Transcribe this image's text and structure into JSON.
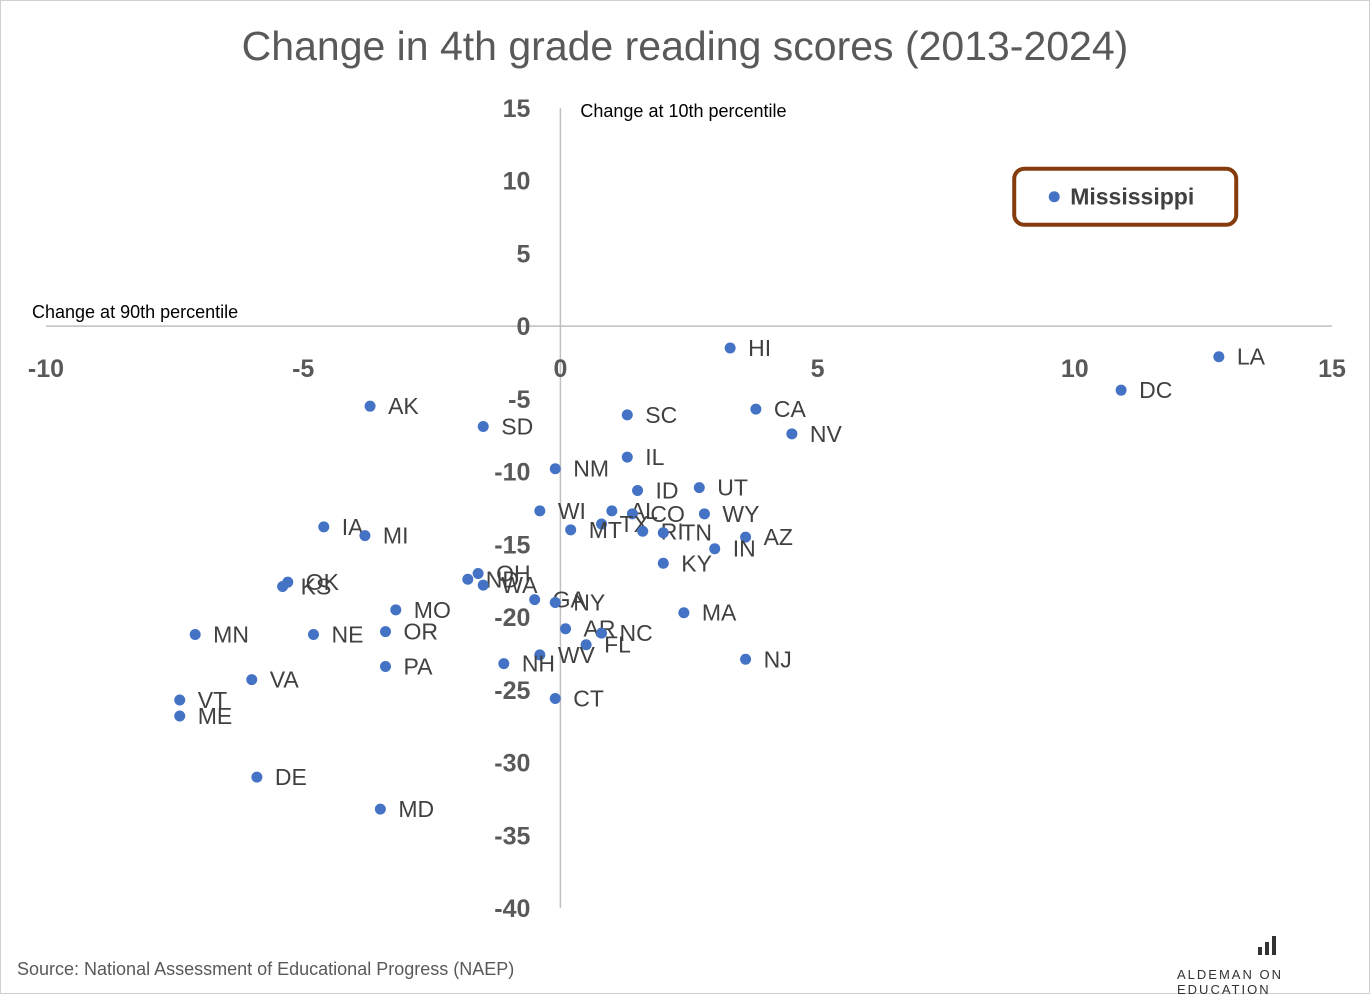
{
  "chart_data": {
    "type": "scatter",
    "title": "Change in 4th grade reading scores (2013-2024)",
    "xlabel": "Change at 90th percentile",
    "ylabel": "Change at 10th percentile",
    "xlim": [
      -10,
      15
    ],
    "ylim": [
      -40,
      15
    ],
    "x_ticks": [
      -10,
      -5,
      0,
      5,
      10,
      15
    ],
    "y_ticks": [
      15,
      10,
      5,
      0,
      -5,
      -10,
      -15,
      -20,
      -25,
      -30,
      -35,
      -40
    ],
    "grid": false,
    "color": "#4472C4",
    "points": [
      {
        "label": "HI",
        "x": 3.3,
        "y": -1.5
      },
      {
        "label": "LA",
        "x": 12.8,
        "y": -2.1
      },
      {
        "label": "DC",
        "x": 10.9,
        "y": -4.4
      },
      {
        "label": "AK",
        "x": -3.7,
        "y": -5.5
      },
      {
        "label": "SC",
        "x": 1.3,
        "y": -6.1
      },
      {
        "label": "CA",
        "x": 3.8,
        "y": -5.7
      },
      {
        "label": "SD",
        "x": -1.5,
        "y": -6.9
      },
      {
        "label": "NV",
        "x": 4.5,
        "y": -7.4
      },
      {
        "label": "IL",
        "x": 1.3,
        "y": -9.0
      },
      {
        "label": "NM",
        "x": -0.1,
        "y": -9.8
      },
      {
        "label": "ID",
        "x": 1.5,
        "y": -11.3
      },
      {
        "label": "UT",
        "x": 2.7,
        "y": -11.1
      },
      {
        "label": "WI",
        "x": -0.4,
        "y": -12.7
      },
      {
        "label": "AL",
        "x": 1.0,
        "y": -12.7
      },
      {
        "label": "CO",
        "x": 1.4,
        "y": -12.9
      },
      {
        "label": "WY",
        "x": 2.8,
        "y": -12.9
      },
      {
        "label": "TX",
        "x": 0.8,
        "y": -13.6
      },
      {
        "label": "MT",
        "x": 0.2,
        "y": -14.0
      },
      {
        "label": "RI",
        "x": 1.6,
        "y": -14.1
      },
      {
        "label": "TN",
        "x": 2.0,
        "y": -14.2
      },
      {
        "label": "AZ",
        "x": 3.6,
        "y": -14.5
      },
      {
        "label": "IN",
        "x": 3.0,
        "y": -15.3
      },
      {
        "label": "IA",
        "x": -4.6,
        "y": -13.8
      },
      {
        "label": "MI",
        "x": -3.8,
        "y": -14.4
      },
      {
        "label": "KY",
        "x": 2.0,
        "y": -16.3
      },
      {
        "label": "OH",
        "x": -1.6,
        "y": -17.0
      },
      {
        "label": "ND",
        "x": -1.8,
        "y": -17.4
      },
      {
        "label": "WA",
        "x": -1.5,
        "y": -17.8
      },
      {
        "label": "OK",
        "x": -5.3,
        "y": -17.6
      },
      {
        "label": "KS",
        "x": -5.4,
        "y": -17.9
      },
      {
        "label": "GA",
        "x": -0.5,
        "y": -18.8
      },
      {
        "label": "NY",
        "x": -0.1,
        "y": -19.0
      },
      {
        "label": "MO",
        "x": -3.2,
        "y": -19.5
      },
      {
        "label": "MA",
        "x": 2.4,
        "y": -19.7
      },
      {
        "label": "AR",
        "x": 0.1,
        "y": -20.8
      },
      {
        "label": "NC",
        "x": 0.8,
        "y": -21.1
      },
      {
        "label": "OR",
        "x": -3.4,
        "y": -21.0
      },
      {
        "label": "FL",
        "x": 0.5,
        "y": -21.9
      },
      {
        "label": "MN",
        "x": -7.1,
        "y": -21.2
      },
      {
        "label": "NE",
        "x": -4.8,
        "y": -21.2
      },
      {
        "label": "WV",
        "x": -0.4,
        "y": -22.6
      },
      {
        "label": "NJ",
        "x": 3.6,
        "y": -22.9
      },
      {
        "label": "NH",
        "x": -1.1,
        "y": -23.2
      },
      {
        "label": "PA",
        "x": -3.4,
        "y": -23.4
      },
      {
        "label": "VA",
        "x": -6.0,
        "y": -24.3
      },
      {
        "label": "CT",
        "x": -0.1,
        "y": -25.6
      },
      {
        "label": "VT",
        "x": -7.4,
        "y": -25.7
      },
      {
        "label": "ME",
        "x": -7.4,
        "y": -26.8
      },
      {
        "label": "DE",
        "x": -5.9,
        "y": -31.0
      },
      {
        "label": "MD",
        "x": -3.5,
        "y": -33.2
      }
    ],
    "highlight": {
      "label": "Mississippi",
      "x": 9.6,
      "y": 8.9,
      "box_color": "#843C0C"
    }
  },
  "source": "Source: National Assessment of Educational Progress (NAEP)",
  "brand": "ALDEMAN ON EDUCATION"
}
